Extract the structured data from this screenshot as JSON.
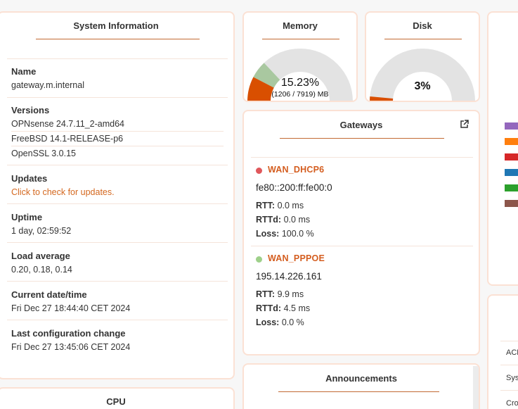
{
  "system_information": {
    "title": "System Information",
    "name_label": "Name",
    "name_value": "gateway.m.internal",
    "versions_label": "Versions",
    "versions": [
      "OPNsense 24.7.11_2-amd64",
      "FreeBSD 14.1-RELEASE-p6",
      "OpenSSL 3.0.15"
    ],
    "updates_label": "Updates",
    "updates_link": "Click to check for updates.",
    "uptime_label": "Uptime",
    "uptime_value": "1 day, 02:59:52",
    "load_label": "Load average",
    "load_value": "0.20, 0.18, 0.14",
    "datetime_label": "Current date/time",
    "datetime_value": "Fri Dec 27 18:44:40 CET 2024",
    "lastconfig_label": "Last configuration change",
    "lastconfig_value": "Fri Dec 27 13:45:06 CET 2024"
  },
  "memory": {
    "title": "Memory",
    "percent_text": "15.23%",
    "detail_text": "(1206 / 7919) MB",
    "used_fraction": 0.1523,
    "arc_fraction": 0.26,
    "colors": {
      "used": "#d94f00",
      "arc": "#a9c8a0",
      "free": "#e3e3e3"
    }
  },
  "disk": {
    "title": "Disk",
    "percent_text": "3%",
    "used_fraction": 0.03,
    "colors": {
      "used": "#d94f00",
      "free": "#e3e3e3"
    }
  },
  "gateways": {
    "title": "Gateways",
    "items": [
      {
        "name": "WAN_DHCP6",
        "status_color": "#e0575b",
        "address": "fe80::200:ff:fe00:0",
        "rtt_label": "RTT:",
        "rtt": "0.0 ms",
        "rttd_label": "RTTd:",
        "rttd": "0.0 ms",
        "loss_label": "Loss:",
        "loss": "100.0 %"
      },
      {
        "name": "WAN_PPPOE",
        "status_color": "#9ed08a",
        "address": "195.14.226.161",
        "rtt_label": "RTT:",
        "rtt": "9.9 ms",
        "rttd_label": "RTTd:",
        "rttd": "4.5 ms",
        "loss_label": "Loss:",
        "loss": "0.0 %"
      }
    ]
  },
  "announcements": {
    "title": "Announcements"
  },
  "cpu": {
    "title": "CPU"
  },
  "right_panel": {
    "legend_colors": [
      "#9467bd",
      "#ff7f0e",
      "#d62728",
      "#1f77b4",
      "#2ca02c",
      "#8c564b"
    ],
    "service_rows": [
      "ACM",
      "Sys",
      "Cro"
    ]
  }
}
